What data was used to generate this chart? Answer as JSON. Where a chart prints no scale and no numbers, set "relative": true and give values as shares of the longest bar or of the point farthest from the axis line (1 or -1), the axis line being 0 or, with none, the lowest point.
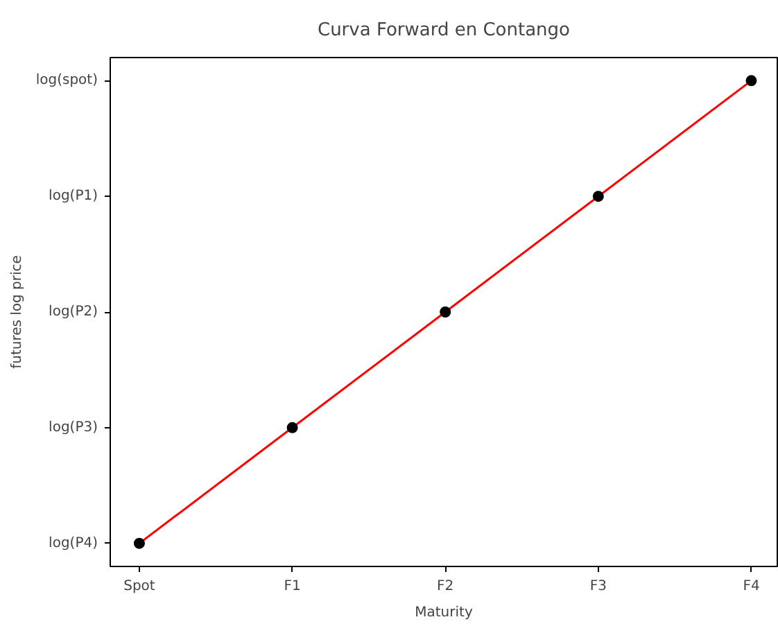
{
  "chart_data": {
    "type": "line",
    "title": "Curva Forward en Contango",
    "xlabel": "Maturity",
    "ylabel": "futures log price",
    "categories": [
      "Spot",
      "F1",
      "F2",
      "F3",
      "F4"
    ],
    "relative": true,
    "series": [
      {
        "color": "#ff0000",
        "values": [
          0,
          0.25,
          0.5,
          0.75,
          1
        ]
      },
      {
        "type": "scatter",
        "color": "#000000",
        "values": [
          0,
          0.25,
          0.5,
          0.75,
          1
        ]
      }
    ],
    "annotations": [
      "log(P4)",
      "log(P3)",
      "log(P2)",
      "log(P1)",
      "log(spot)"
    ],
    "grid": false
  }
}
